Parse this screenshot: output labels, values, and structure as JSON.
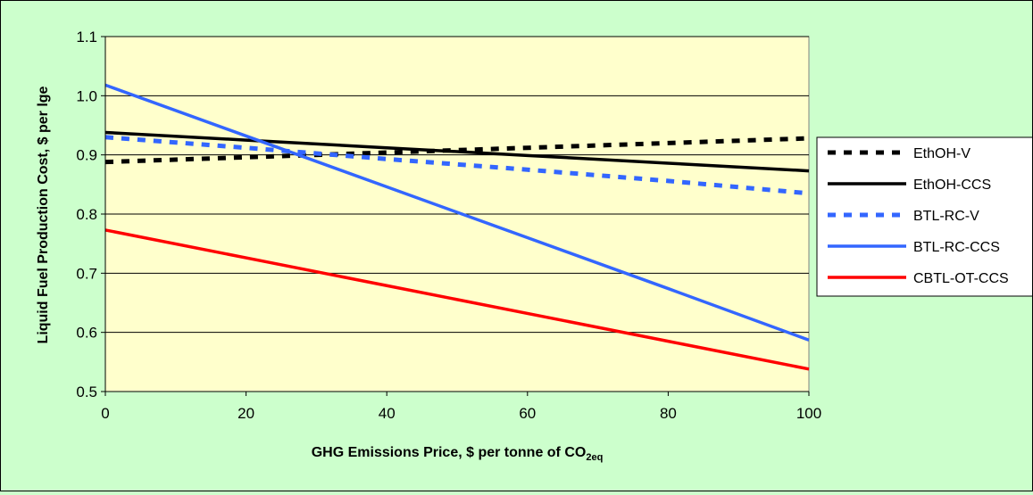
{
  "chart_data": {
    "type": "line",
    "title": "",
    "xlabel": "GHG Emissions Price, $ per tonne of CO",
    "xlabel_sub": "2eq",
    "ylabel": "Liquid Fuel Production Cost, $ per lge",
    "xlim": [
      0,
      100
    ],
    "ylim": [
      0.5,
      1.1
    ],
    "xticks": [
      "0",
      "20",
      "40",
      "60",
      "80",
      "100"
    ],
    "yticks": [
      "0.5",
      "0.6",
      "0.7",
      "0.8",
      "0.9",
      "1.0",
      "1.1"
    ],
    "grid": "horizontal",
    "legend_position": "right",
    "plot_background": "#ffffcc",
    "figure_background": "#ccffcc",
    "series": [
      {
        "name": "EthOH-V",
        "color": "#000000",
        "dashed": true,
        "x": [
          0,
          20,
          40,
          60,
          80,
          100
        ],
        "values": [
          0.888,
          0.896,
          0.904,
          0.912,
          0.92,
          0.928
        ]
      },
      {
        "name": "EthOH-CCS",
        "color": "#000000",
        "dashed": false,
        "x": [
          0,
          20,
          40,
          60,
          80,
          100
        ],
        "values": [
          0.938,
          0.925,
          0.912,
          0.899,
          0.886,
          0.873
        ]
      },
      {
        "name": "BTL-RC-V",
        "color": "#3366ff",
        "dashed": true,
        "x": [
          0,
          20,
          40,
          60,
          80,
          100
        ],
        "values": [
          0.93,
          0.912,
          0.893,
          0.875,
          0.856,
          0.835
        ]
      },
      {
        "name": "BTL-RC-CCS",
        "color": "#3366ff",
        "dashed": false,
        "x": [
          0,
          20,
          40,
          60,
          80,
          100
        ],
        "values": [
          1.018,
          0.932,
          0.846,
          0.76,
          0.674,
          0.587
        ]
      },
      {
        "name": "CBTL-OT-CCS",
        "color": "#ff0000",
        "dashed": false,
        "x": [
          0,
          20,
          40,
          60,
          80,
          100
        ],
        "values": [
          0.773,
          0.726,
          0.679,
          0.632,
          0.585,
          0.538
        ]
      }
    ]
  }
}
